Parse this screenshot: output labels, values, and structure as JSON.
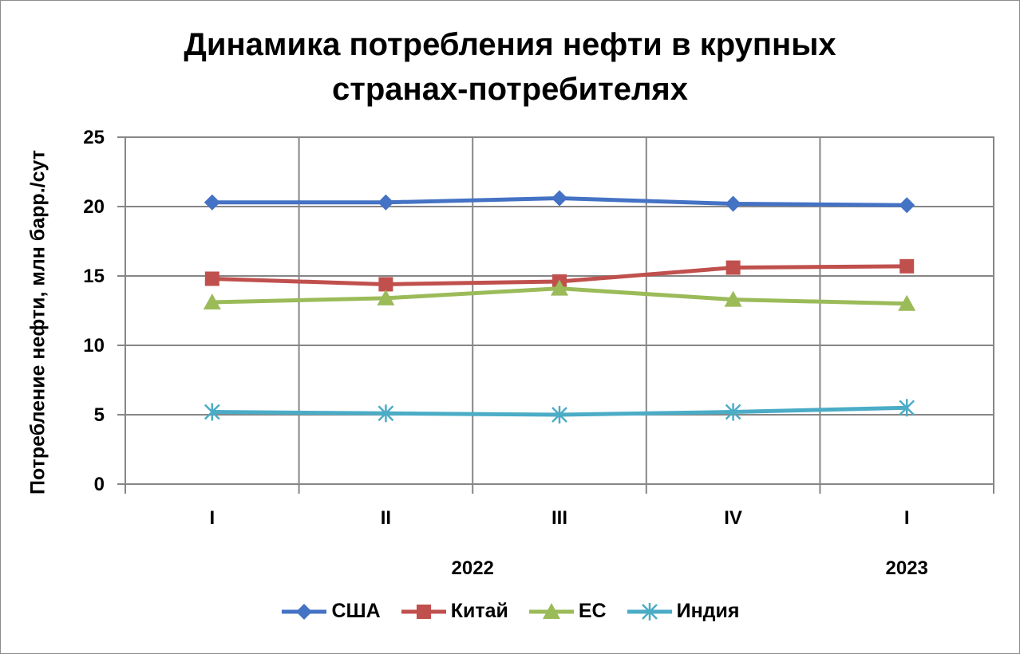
{
  "chart_data": {
    "type": "line",
    "title_lines": [
      "Динамика потребления нефти в крупных",
      "странах-потребителях"
    ],
    "ylabel": "Потребление нефти, млн барр./сут",
    "xlabel": "",
    "ylim": [
      0,
      25
    ],
    "yticks": [
      0,
      5,
      10,
      15,
      20,
      25
    ],
    "categories": [
      "I",
      "II",
      "III",
      "IV",
      "I"
    ],
    "year_labels": [
      {
        "label": "2022",
        "category_index": 1.5
      },
      {
        "label": "2023",
        "category_index": 4
      }
    ],
    "grid": true,
    "legend_position": "bottom",
    "series": [
      {
        "name": "США",
        "values": [
          20.3,
          20.3,
          20.6,
          20.2,
          20.1
        ],
        "color": "#4472C4",
        "marker": "diamond-icon"
      },
      {
        "name": "Китай",
        "values": [
          14.8,
          14.4,
          14.6,
          15.6,
          15.7
        ],
        "color": "#C0504D",
        "marker": "square-icon"
      },
      {
        "name": "ЕС",
        "values": [
          13.1,
          13.4,
          14.1,
          13.3,
          13.0
        ],
        "color": "#9BBB59",
        "marker": "triangle-icon"
      },
      {
        "name": "Индия",
        "values": [
          5.2,
          5.1,
          5.0,
          5.2,
          5.5
        ],
        "color": "#4BACC6",
        "marker": "star-cross-icon"
      }
    ]
  }
}
